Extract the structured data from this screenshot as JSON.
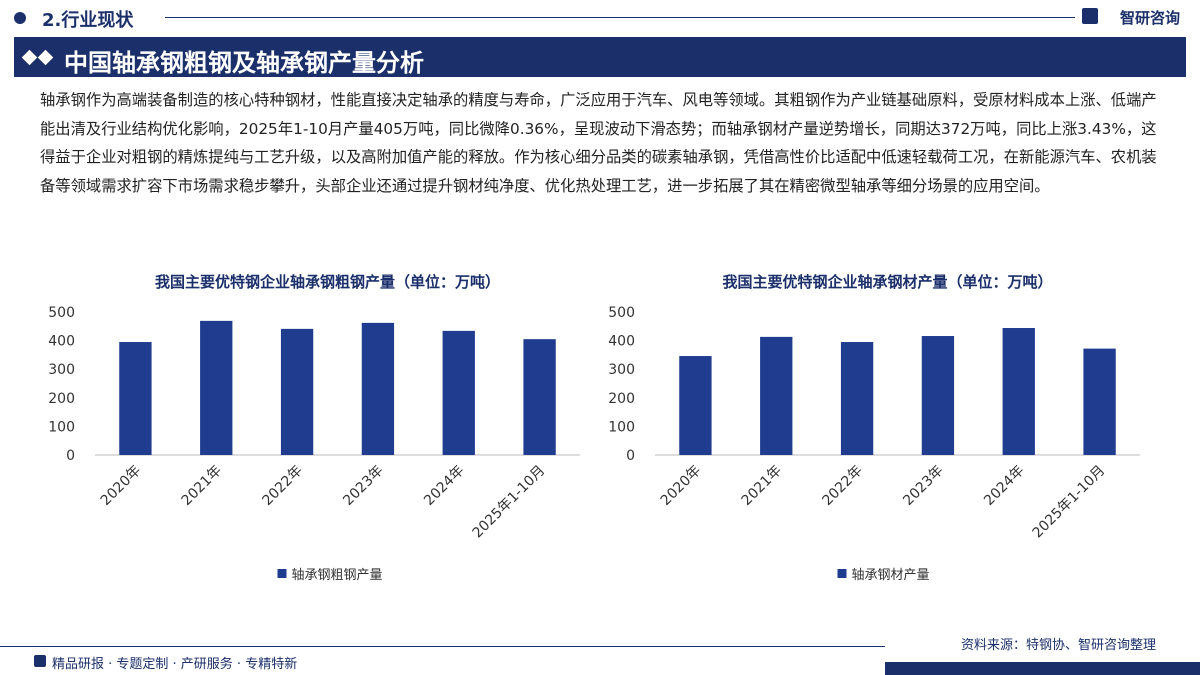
{
  "header": {
    "section": "2.行业现状",
    "brand": "智研咨询",
    "title": "中国轴承钢粗钢及轴承钢产量分析"
  },
  "body": {
    "paragraph": "轴承钢作为高端装备制造的核心特种钢材，性能直接决定轴承的精度与寿命，广泛应用于汽车、风电等领域。其粗钢作为产业链基础原料，受原材料成本上涨、低端产能出清及行业结构优化影响，2025年1-10月产量405万吨，同比微降0.36%，呈现波动下滑态势；而轴承钢材产量逆势增长，同期达372万吨，同比上涨3.43%，这得益于企业对粗钢的精炼提纯与工艺升级，以及高附加值产能的释放。作为核心细分品类的碳素轴承钢，凭借高性价比适配中低速轻载荷工况，在新能源汽车、农机装备等领域需求扩容下市场需求稳步攀升，头部企业还通过提升钢材纯净度、优化热处理工艺，进一步拓展了其在精密微型轴承等细分场景的应用空间。"
  },
  "chart_data": [
    {
      "type": "bar",
      "title": "我国主要优特钢企业轴承钢粗钢产量（单位：万吨）",
      "categories": [
        "2020年",
        "2021年",
        "2022年",
        "2023年",
        "2024年",
        "2025年1-10月"
      ],
      "series": [
        {
          "name": "轴承钢粗钢产量",
          "color": "#1f3c8f",
          "values": [
            395,
            469,
            441,
            462,
            434,
            405
          ]
        }
      ],
      "ylim": [
        0,
        500
      ],
      "yticks": [
        0,
        100,
        200,
        300,
        400,
        500
      ],
      "grid": false,
      "legend": "bottom"
    },
    {
      "type": "bar",
      "title": "我国主要优特钢企业轴承钢材产量（单位：万吨）",
      "categories": [
        "2020年",
        "2021年",
        "2022年",
        "2023年",
        "2024年",
        "2025年1-10月"
      ],
      "series": [
        {
          "name": "轴承钢材产量",
          "color": "#1f3c8f",
          "values": [
            346,
            413,
            395,
            416,
            444,
            372
          ]
        }
      ],
      "ylim": [
        0,
        500
      ],
      "yticks": [
        0,
        100,
        200,
        300,
        400,
        500
      ],
      "grid": false,
      "legend": "bottom"
    }
  ],
  "footer": {
    "source": "资料来源：特钢协、智研咨询整理",
    "tagline": "精品研报 · 专题定制 · 产研服务 · 专精特新"
  }
}
